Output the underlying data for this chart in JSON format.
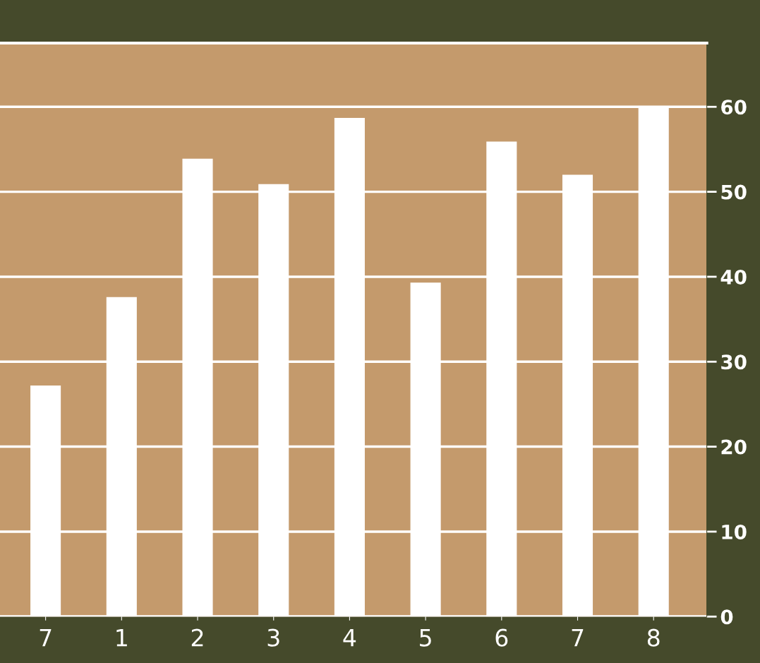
{
  "chart_data": {
    "type": "bar",
    "categories": [
      "7",
      "1",
      "2",
      "3",
      "4",
      "5",
      "6",
      "7",
      "8"
    ],
    "values": [
      27.2,
      37.6,
      53.9,
      50.9,
      58.7,
      39.3,
      55.9,
      52.0,
      60.0
    ],
    "color": "#ffffff",
    "ylim": [
      0,
      67.5
    ],
    "yticks": [
      0,
      10,
      20,
      30,
      40,
      50,
      60
    ],
    "grid": "y"
  }
}
